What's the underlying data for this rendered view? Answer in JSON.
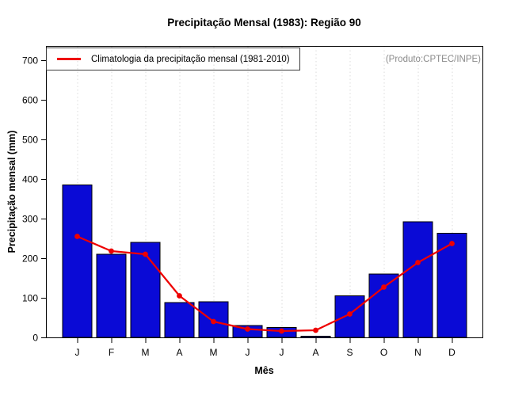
{
  "title": "Precipitação Mensal (1983): Região 90",
  "annotation": "(Produto:CPTEC/INPE)",
  "chart_data": {
    "type": "bar",
    "title": "Precipitação Mensal (1983): Região 90",
    "xlabel": "Mês",
    "ylabel": "Precipitação mensal (mm)",
    "categories": [
      "J",
      "F",
      "M",
      "A",
      "M",
      "J",
      "J",
      "A",
      "S",
      "O",
      "N",
      "D"
    ],
    "series": [
      {
        "name": "1983",
        "type": "bar",
        "color": "#0a0ad6",
        "edge_color": "#000000",
        "values": [
          385,
          210,
          240,
          88,
          90,
          30,
          25,
          3,
          105,
          160,
          292,
          263
        ]
      },
      {
        "name": "Climatologia da precipitação mensal (1981-2010)",
        "type": "line",
        "color": "#ee0000",
        "marker": "circle",
        "values": [
          255,
          218,
          210,
          105,
          40,
          21,
          16,
          18,
          59,
          127,
          189,
          237
        ]
      }
    ],
    "ylim": [
      0,
      736
    ],
    "yticks": [
      0,
      100,
      200,
      300,
      400,
      500,
      600,
      700
    ],
    "grid": "vertical-dotted",
    "grid_color": "#dbdbdb",
    "legend_position": "top-left",
    "legend_entries": [
      "Climatologia da precipitação mensal (1981-2010)"
    ],
    "annotation": "(Produto:CPTEC/INPE)",
    "annotation_color": "#8a8a8a"
  }
}
